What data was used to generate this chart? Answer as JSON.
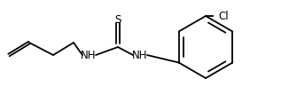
{
  "background_color": "#ffffff",
  "line_color": "#000000",
  "text_color": "#000000",
  "line_width": 1.3,
  "font_size": 8.5,
  "figsize": [
    3.26,
    1.07
  ],
  "dpi": 100,
  "xlim": [
    0,
    326
  ],
  "ylim": [
    0,
    107
  ]
}
